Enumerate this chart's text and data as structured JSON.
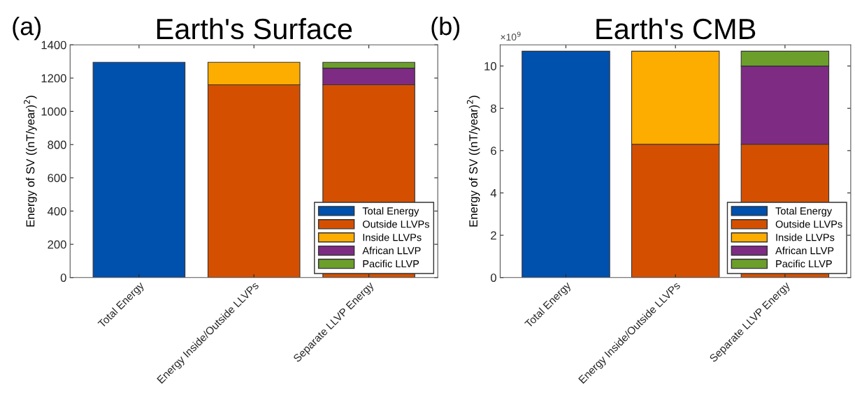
{
  "chart_data": [
    {
      "type": "bar",
      "title": "Earth's Surface",
      "ylabel": "Energy of SV ((nT/year)$^{2}$)",
      "annotations": [
        "(a)"
      ],
      "categories": [
        "Total Energy",
        "Energy Inside/Outside LLVPs",
        "Separate LLVP Energy"
      ],
      "stacked": true,
      "series": [
        {
          "name": "Total Energy",
          "color": "#0050ae",
          "values": [
            1295,
            null,
            null
          ]
        },
        {
          "name": "Outside LLVPs",
          "color": "#d45000",
          "values": [
            null,
            1160,
            1160
          ]
        },
        {
          "name": "Inside LLVPs",
          "color": "#fdac00",
          "values": [
            null,
            135,
            null
          ]
        },
        {
          "name": "African LLVP",
          "color": "#7e2b84",
          "values": [
            null,
            null,
            100
          ]
        },
        {
          "name": "Pacific LLVP",
          "color": "#6c9e2b",
          "values": [
            null,
            null,
            35
          ]
        }
      ],
      "ylim": [
        0,
        1400
      ],
      "yticks": [
        0,
        200,
        400,
        600,
        800,
        1000,
        1200,
        1400
      ],
      "grid": false,
      "legend": "bottom right"
    },
    {
      "type": "bar",
      "title": "Earth's CMB",
      "ylabel": "Energy of SV ((nT/year)$^{2}$)",
      "annotations": [
        "(b)",
        "×10$^{9}$"
      ],
      "categories": [
        "Total Energy",
        "Energy Inside/Outside LLVPs",
        "Separate LLVP Energy"
      ],
      "stacked": true,
      "series": [
        {
          "name": "Total Energy",
          "color": "#0050ae",
          "values": [
            10.7,
            null,
            null
          ]
        },
        {
          "name": "Outside LLVPs",
          "color": "#d45000",
          "values": [
            null,
            6.3,
            6.3
          ]
        },
        {
          "name": "Inside LLVPs",
          "color": "#fdac00",
          "values": [
            null,
            4.4,
            null
          ]
        },
        {
          "name": "African LLVP",
          "color": "#7e2b84",
          "values": [
            null,
            null,
            3.7
          ]
        },
        {
          "name": "Pacific LLVP",
          "color": "#6c9e2b",
          "values": [
            null,
            null,
            0.7
          ]
        }
      ],
      "ylim": [
        0,
        11
      ],
      "yticks": [
        0,
        2,
        4,
        6,
        8,
        10
      ],
      "grid": false,
      "legend": "bottom right"
    }
  ]
}
